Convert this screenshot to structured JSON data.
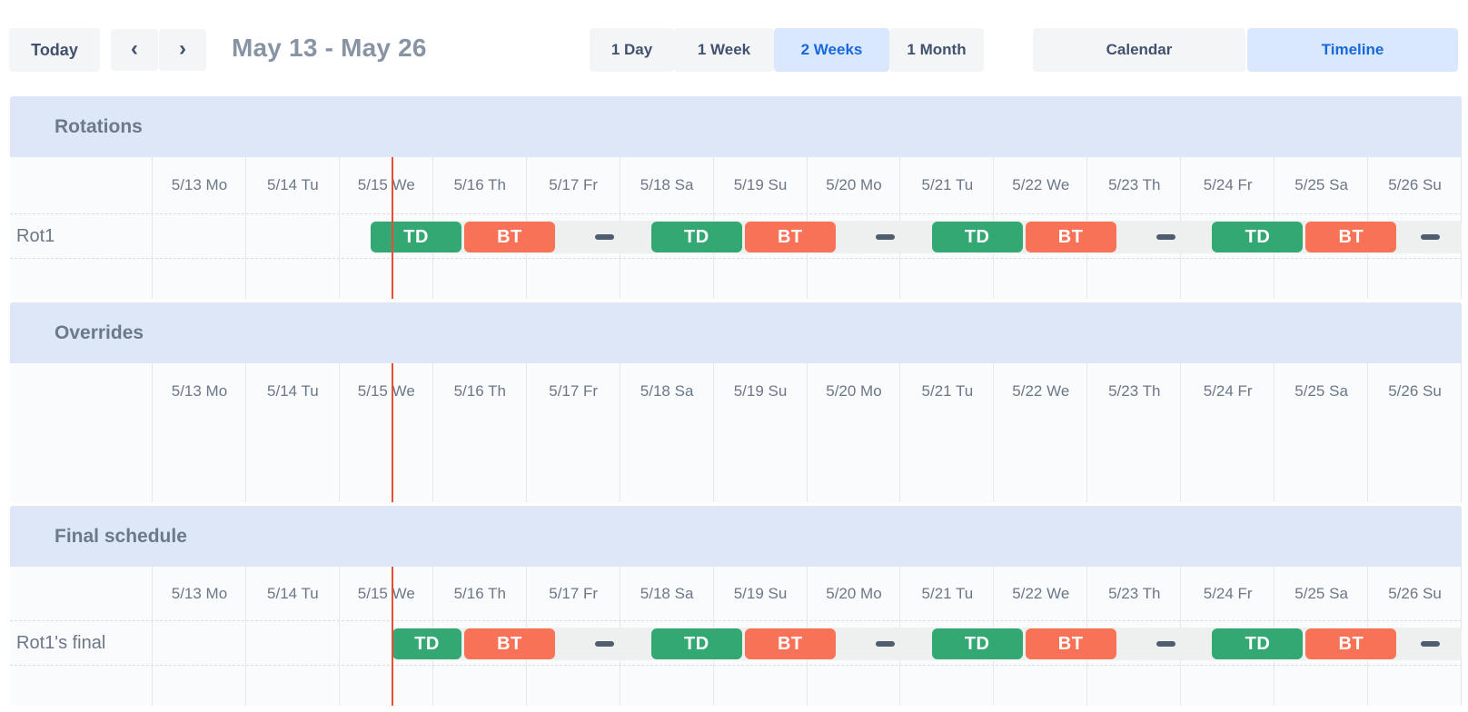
{
  "toolbar": {
    "today_label": "Today",
    "prev_icon": "‹",
    "next_icon": "›",
    "title": "May 13 - May 26",
    "view_buttons": [
      {
        "label": "1 Day",
        "selected": false
      },
      {
        "label": "1 Week",
        "selected": false
      },
      {
        "label": "2 Weeks",
        "selected": true
      },
      {
        "label": "1 Month",
        "selected": false
      }
    ],
    "mode_buttons": [
      {
        "label": "Calendar",
        "selected": false
      },
      {
        "label": "Timeline",
        "selected": true
      }
    ]
  },
  "colors": {
    "accent_blue": "#1868db",
    "selected_button_bg": "#d9e8fe",
    "section_header_bg": "#dde7f8",
    "shift_td": "#33a873",
    "shift_bt": "#f87257",
    "gap_dash": "#4f5e6e",
    "now_line": "#e84c3d"
  },
  "timeline": {
    "day_labels": [
      "5/13 Mo",
      "5/14 Tu",
      "5/15 We",
      "5/16 Th",
      "5/17 Fr",
      "5/18 Sa",
      "5/19 Su",
      "5/20 Mo",
      "5/21 Tu",
      "5/22 We",
      "5/23 Th",
      "5/24 Fr",
      "5/25 Sa",
      "5/26 Su"
    ],
    "now_day": 2.565,
    "sections": [
      {
        "title": "Rotations",
        "date_row_height": 62,
        "bottom_padding": 44,
        "rows": [
          {
            "label": "Rot1",
            "track_start_day": 2.333,
            "items": [
              {
                "kind": "shift",
                "type": "td",
                "label": "TD",
                "start_day": 2.333,
                "end_day": 3.333
              },
              {
                "kind": "shift",
                "type": "bt",
                "label": "BT",
                "start_day": 3.333,
                "end_day": 4.333
              },
              {
                "kind": "gap",
                "start_day": 4.333,
                "end_day": 5.333
              },
              {
                "kind": "shift",
                "type": "td",
                "label": "TD",
                "start_day": 5.333,
                "end_day": 6.333
              },
              {
                "kind": "shift",
                "type": "bt",
                "label": "BT",
                "start_day": 6.333,
                "end_day": 7.333
              },
              {
                "kind": "gap",
                "start_day": 7.333,
                "end_day": 8.333
              },
              {
                "kind": "shift",
                "type": "td",
                "label": "TD",
                "start_day": 8.333,
                "end_day": 9.333
              },
              {
                "kind": "shift",
                "type": "bt",
                "label": "BT",
                "start_day": 9.333,
                "end_day": 10.333
              },
              {
                "kind": "gap",
                "start_day": 10.333,
                "end_day": 11.333
              },
              {
                "kind": "shift",
                "type": "td",
                "label": "TD",
                "start_day": 11.333,
                "end_day": 12.333
              },
              {
                "kind": "shift",
                "type": "bt",
                "label": "BT",
                "start_day": 12.333,
                "end_day": 13.333
              },
              {
                "kind": "gap",
                "start_day": 13.333,
                "end_day": 14.0
              }
            ]
          }
        ]
      },
      {
        "title": "Overrides",
        "date_row_height": 62,
        "bottom_padding": 91,
        "rows": []
      },
      {
        "title": "Final schedule",
        "date_row_height": 59,
        "bottom_padding": 44,
        "rows": [
          {
            "label": "Rot1's final",
            "track_start_day": 2.565,
            "items": [
              {
                "kind": "shift",
                "type": "td",
                "label": "TD",
                "start_day": 2.565,
                "end_day": 3.333
              },
              {
                "kind": "shift",
                "type": "bt",
                "label": "BT",
                "start_day": 3.333,
                "end_day": 4.333
              },
              {
                "kind": "gap",
                "start_day": 4.333,
                "end_day": 5.333
              },
              {
                "kind": "shift",
                "type": "td",
                "label": "TD",
                "start_day": 5.333,
                "end_day": 6.333
              },
              {
                "kind": "shift",
                "type": "bt",
                "label": "BT",
                "start_day": 6.333,
                "end_day": 7.333
              },
              {
                "kind": "gap",
                "start_day": 7.333,
                "end_day": 8.333
              },
              {
                "kind": "shift",
                "type": "td",
                "label": "TD",
                "start_day": 8.333,
                "end_day": 9.333
              },
              {
                "kind": "shift",
                "type": "bt",
                "label": "BT",
                "start_day": 9.333,
                "end_day": 10.333
              },
              {
                "kind": "gap",
                "start_day": 10.333,
                "end_day": 11.333
              },
              {
                "kind": "shift",
                "type": "td",
                "label": "TD",
                "start_day": 11.333,
                "end_day": 12.333
              },
              {
                "kind": "shift",
                "type": "bt",
                "label": "BT",
                "start_day": 12.333,
                "end_day": 13.333
              },
              {
                "kind": "gap",
                "start_day": 13.333,
                "end_day": 14.0
              }
            ]
          }
        ]
      }
    ]
  }
}
